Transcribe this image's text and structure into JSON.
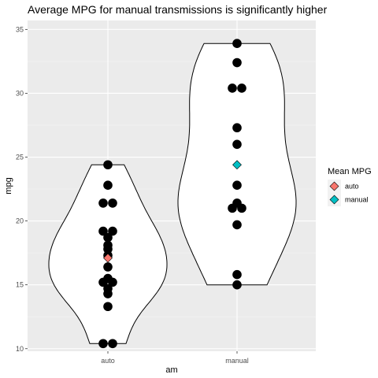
{
  "chart_data": {
    "type": "violin",
    "title": "Average MPG for manual transmissions is significantly higher",
    "xlabel": "am",
    "ylabel": "mpg",
    "categories": [
      "auto",
      "manual"
    ],
    "ylim": [
      9.8,
      35.7
    ],
    "yticks": [
      10,
      15,
      20,
      25,
      30,
      35
    ],
    "grid": true,
    "legend": {
      "title": "Mean MPG",
      "placement": "right",
      "entries": [
        {
          "label": "auto",
          "color": "#F8766D"
        },
        {
          "label": "manual",
          "color": "#00BFC4"
        }
      ]
    },
    "series": [
      {
        "category": "auto",
        "values": [
          21.4,
          18.7,
          18.1,
          14.3,
          24.4,
          22.8,
          19.2,
          17.8,
          16.4,
          17.3,
          15.2,
          10.4,
          10.4,
          14.7,
          21.5,
          15.5,
          15.2,
          13.3,
          19.2
        ],
        "mean": 17.1
      },
      {
        "category": "manual",
        "values": [
          21.0,
          21.0,
          22.8,
          32.4,
          30.4,
          33.9,
          27.3,
          26.0,
          30.4,
          15.8,
          19.7,
          15.0,
          21.4
        ],
        "mean": 24.4
      }
    ]
  }
}
